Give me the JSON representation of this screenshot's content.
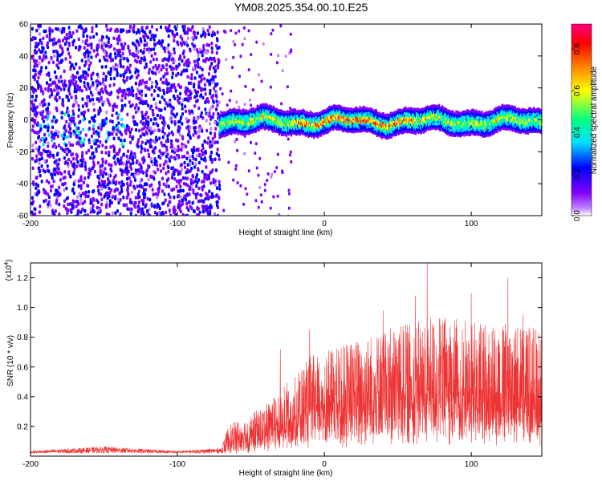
{
  "title": "YM08.2025.354.00.10.E25",
  "chart_data": [
    {
      "type": "heatmap",
      "name": "spectrogram",
      "xlabel": "Height of straight line (km)",
      "ylabel": "Frequency (Hz)",
      "xlim": [
        -200,
        148
      ],
      "ylim": [
        -60,
        60
      ],
      "xticks": [
        -200,
        -100,
        0,
        100
      ],
      "yticks": [
        -60,
        -40,
        -20,
        0,
        20,
        40,
        60
      ],
      "xtick_labels": [
        "-200",
        "-100",
        "0",
        "100"
      ],
      "ytick_labels": [
        "-60",
        "-40",
        "-20",
        "0",
        "20",
        "40",
        "60"
      ],
      "noise_region_end_km": -72,
      "signal_band_center_hz": 0,
      "colorbar": {
        "label": "Normalized spectral amplitude",
        "range": [
          0,
          0.92
        ],
        "ticks": [
          0.0,
          0.2,
          0.4,
          0.6,
          0.8
        ],
        "tick_labels": [
          "0.0",
          "0.2",
          "0.4",
          "0.6",
          "0.8"
        ],
        "colors": [
          "#ffffff",
          "#c080ff",
          "#8000ff",
          "#0000ff",
          "#00e0ff",
          "#00ff80",
          "#ffff00",
          "#ff8000",
          "#ff0000",
          "#ff00ff"
        ]
      }
    },
    {
      "type": "line",
      "name": "snr",
      "xlabel": "Height of straight line (km)",
      "ylabel": "SNR (10 * v/v)",
      "scale_label": "(x10",
      "scale_exp": "4",
      "scale_close": ")",
      "xlim": [
        -200,
        148
      ],
      "ylim": [
        0,
        1.3
      ],
      "xticks": [
        -200,
        -100,
        0,
        100
      ],
      "yticks": [
        0.2,
        0.4,
        0.6,
        0.8,
        1.0,
        1.2
      ],
      "xtick_labels": [
        "-200",
        "-100",
        "0",
        "100"
      ],
      "ytick_labels": [
        "0.2",
        "0.4",
        "0.6",
        "0.8",
        "1.0",
        "1.2"
      ],
      "color": "#ee3333",
      "envelope": {
        "x": [
          -200,
          -150,
          -100,
          -70,
          -65,
          -55,
          -40,
          -30,
          -20,
          -10,
          0,
          20,
          40,
          60,
          80,
          100,
          120,
          148
        ],
        "y": [
          0.03,
          0.06,
          0.03,
          0.05,
          0.22,
          0.25,
          0.35,
          0.45,
          0.55,
          0.68,
          0.7,
          0.78,
          0.85,
          0.9,
          0.95,
          0.92,
          0.9,
          0.88
        ]
      },
      "spikes": [
        {
          "x": -30,
          "y": 0.72
        },
        {
          "x": -10,
          "y": 0.85
        },
        {
          "x": 40,
          "y": 0.98
        },
        {
          "x": 62,
          "y": 1.08
        },
        {
          "x": 70,
          "y": 1.3
        },
        {
          "x": 100,
          "y": 1.1
        },
        {
          "x": 125,
          "y": 1.2
        },
        {
          "x": 135,
          "y": 0.95
        }
      ]
    }
  ]
}
